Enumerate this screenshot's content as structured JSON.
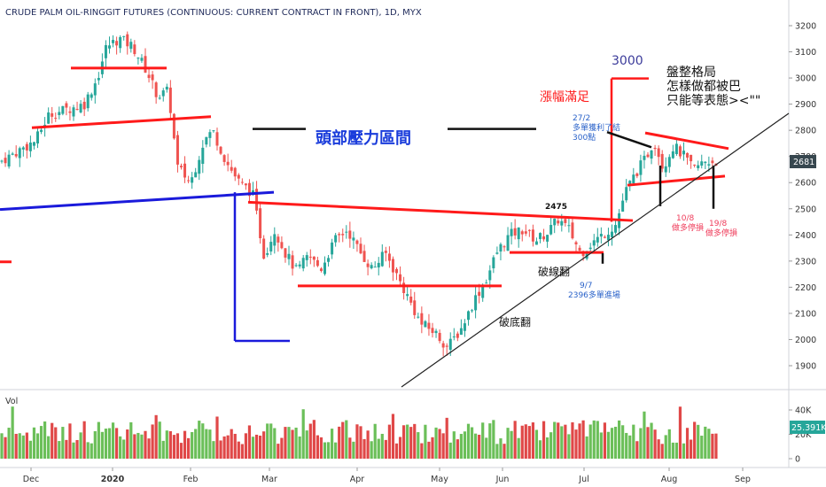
{
  "chart_data": {
    "type": "candlestick",
    "title": "CRUDE PALM OIL-RINGGIT FUTURES (CONTINUOUS: CURRENT CONTRACT IN FRONT), 1D, MYX",
    "yticks": [
      "3200",
      "3100",
      "3000",
      "2900",
      "2800",
      "2700",
      "2600",
      "2500",
      "2400",
      "2300",
      "2200",
      "2100",
      "2000",
      "1900"
    ],
    "ylim": [
      1800,
      3270
    ],
    "xticks": [
      "Dec",
      "2020",
      "Feb",
      "Mar",
      "Apr",
      "May",
      "Jun",
      "Jul",
      "Aug",
      "Sep"
    ],
    "last_price": "2681",
    "volume": {
      "label": "Vol",
      "yticks": [
        "40K",
        "20K",
        "0"
      ],
      "last": "25.391K",
      "ylim": [
        0,
        45000
      ]
    },
    "annotations": {
      "head_zone": "頭部壓力區間",
      "target_3000": "3000",
      "rise_done": "漲幅滿足",
      "consolidation_1": "盤整格局",
      "consolidation_2": "怎樣做都被巴",
      "consolidation_3": "只能等表態><\"\"",
      "tp_1": "27/2",
      "tp_2": "多單獲利了結",
      "tp_3": "300點",
      "level_2475": "2475",
      "break_line": "破線翻",
      "break_bottom": "破底翻",
      "entry_1": "9/7",
      "entry_2": "2396多單進場",
      "stop1_1": "10/8",
      "stop1_2": "做多停損",
      "stop2_1": "19/8",
      "stop2_2": "做多停損"
    },
    "colors": {
      "up": "#26a69a",
      "down": "#ef5350",
      "red_line": "#ff1a1a",
      "blue_line": "#1a1adb",
      "text_blue": "#1a3cdb",
      "price_tag": "#37474f",
      "vol_tag": "#26a69a"
    }
  }
}
